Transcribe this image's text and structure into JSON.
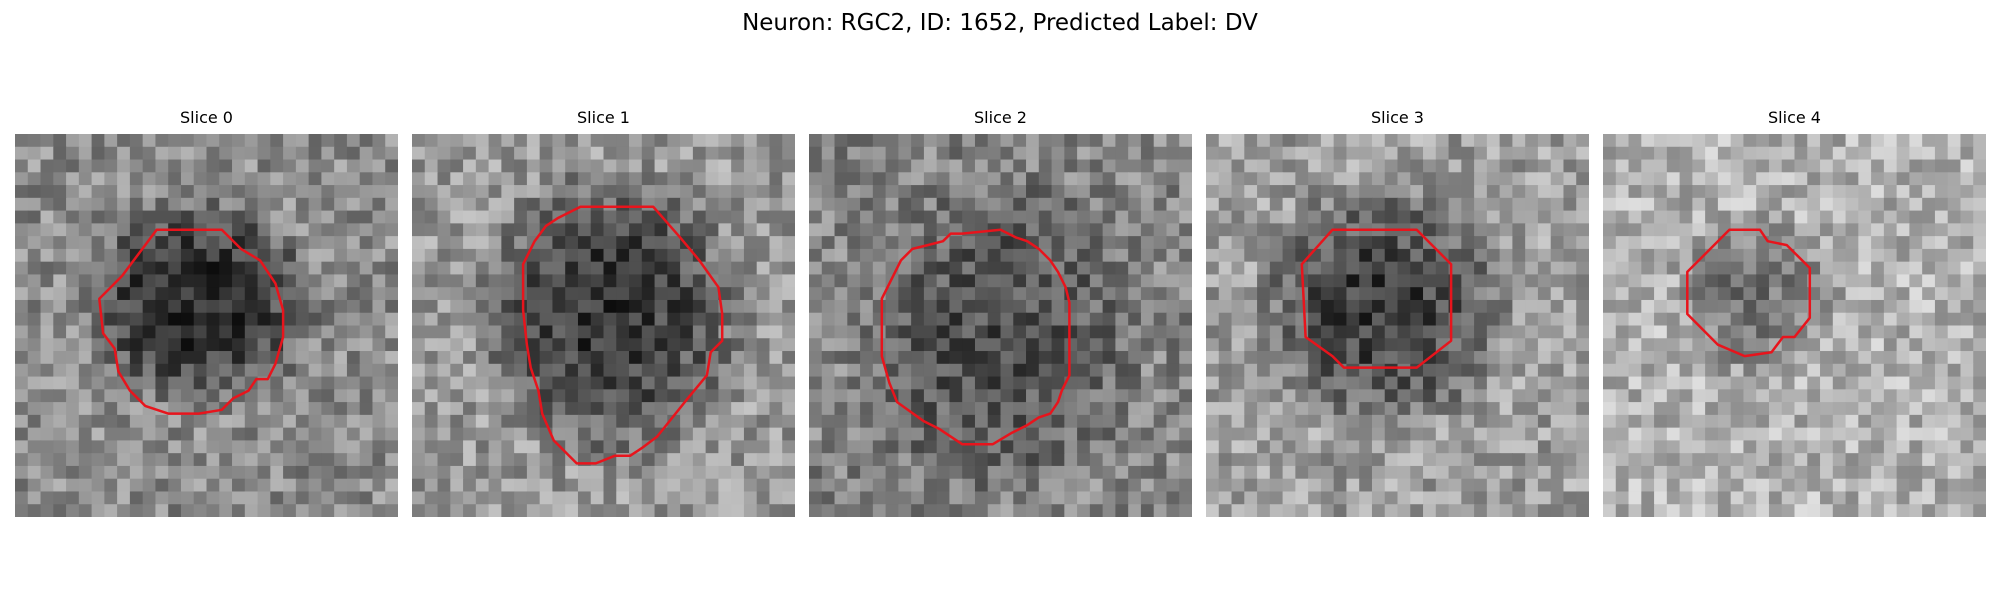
{
  "figure": {
    "title": "Neuron: RGC2, ID: 1652, Predicted Label: DV"
  },
  "contour_color": "#e8141c",
  "panels": [
    {
      "title": "Slice 0",
      "seed": 11,
      "bg": 0.55,
      "dark": 0.14,
      "center": [
        0.48,
        0.44
      ],
      "radius": [
        0.34,
        0.3
      ],
      "outline": [
        [
          0.37,
          0.25
        ],
        [
          0.54,
          0.25
        ],
        [
          0.59,
          0.3
        ],
        [
          0.64,
          0.33
        ],
        [
          0.68,
          0.39
        ],
        [
          0.7,
          0.46
        ],
        [
          0.7,
          0.53
        ],
        [
          0.68,
          0.6
        ],
        [
          0.66,
          0.64
        ],
        [
          0.63,
          0.64
        ],
        [
          0.61,
          0.67
        ],
        [
          0.57,
          0.69
        ],
        [
          0.54,
          0.72
        ],
        [
          0.48,
          0.73
        ],
        [
          0.4,
          0.73
        ],
        [
          0.34,
          0.71
        ],
        [
          0.3,
          0.67
        ],
        [
          0.27,
          0.62
        ],
        [
          0.26,
          0.56
        ],
        [
          0.23,
          0.52
        ],
        [
          0.22,
          0.43
        ],
        [
          0.25,
          0.4
        ],
        [
          0.28,
          0.37
        ],
        [
          0.31,
          0.33
        ]
      ]
    },
    {
      "title": "Slice 1",
      "seed": 23,
      "bg": 0.6,
      "dark": 0.2,
      "center": [
        0.52,
        0.47
      ],
      "radius": [
        0.38,
        0.42
      ],
      "outline": [
        [
          0.44,
          0.19
        ],
        [
          0.63,
          0.19
        ],
        [
          0.7,
          0.27
        ],
        [
          0.75,
          0.33
        ],
        [
          0.8,
          0.4
        ],
        [
          0.81,
          0.47
        ],
        [
          0.81,
          0.54
        ],
        [
          0.78,
          0.57
        ],
        [
          0.77,
          0.63
        ],
        [
          0.72,
          0.69
        ],
        [
          0.64,
          0.79
        ],
        [
          0.6,
          0.82
        ],
        [
          0.57,
          0.84
        ],
        [
          0.53,
          0.84
        ],
        [
          0.48,
          0.86
        ],
        [
          0.43,
          0.86
        ],
        [
          0.4,
          0.83
        ],
        [
          0.37,
          0.8
        ],
        [
          0.34,
          0.73
        ],
        [
          0.33,
          0.67
        ],
        [
          0.31,
          0.61
        ],
        [
          0.3,
          0.55
        ],
        [
          0.29,
          0.46
        ],
        [
          0.29,
          0.34
        ],
        [
          0.32,
          0.28
        ],
        [
          0.35,
          0.24
        ],
        [
          0.38,
          0.22
        ]
      ]
    },
    {
      "title": "Slice 2",
      "seed": 37,
      "bg": 0.52,
      "dark": 0.3,
      "center": [
        0.49,
        0.53
      ],
      "radius": [
        0.4,
        0.46
      ],
      "outline": [
        [
          0.4,
          0.26
        ],
        [
          0.5,
          0.25
        ],
        [
          0.54,
          0.27
        ],
        [
          0.57,
          0.28
        ],
        [
          0.6,
          0.3
        ],
        [
          0.63,
          0.33
        ],
        [
          0.65,
          0.36
        ],
        [
          0.67,
          0.4
        ],
        [
          0.68,
          0.44
        ],
        [
          0.68,
          0.52
        ],
        [
          0.68,
          0.58
        ],
        [
          0.68,
          0.63
        ],
        [
          0.66,
          0.67
        ],
        [
          0.65,
          0.7
        ],
        [
          0.63,
          0.73
        ],
        [
          0.6,
          0.74
        ],
        [
          0.57,
          0.76
        ],
        [
          0.53,
          0.78
        ],
        [
          0.48,
          0.81
        ],
        [
          0.4,
          0.81
        ],
        [
          0.37,
          0.79
        ],
        [
          0.34,
          0.77
        ],
        [
          0.3,
          0.75
        ],
        [
          0.23,
          0.7
        ],
        [
          0.21,
          0.65
        ],
        [
          0.19,
          0.58
        ],
        [
          0.19,
          0.43
        ],
        [
          0.22,
          0.37
        ],
        [
          0.24,
          0.33
        ],
        [
          0.27,
          0.3
        ],
        [
          0.31,
          0.29
        ],
        [
          0.35,
          0.28
        ],
        [
          0.37,
          0.26
        ]
      ]
    },
    {
      "title": "Slice 3",
      "seed": 41,
      "bg": 0.62,
      "dark": 0.22,
      "center": [
        0.46,
        0.45
      ],
      "radius": [
        0.36,
        0.36
      ],
      "outline": [
        [
          0.33,
          0.25
        ],
        [
          0.55,
          0.25
        ],
        [
          0.64,
          0.34
        ],
        [
          0.64,
          0.54
        ],
        [
          0.55,
          0.61
        ],
        [
          0.36,
          0.61
        ],
        [
          0.33,
          0.58
        ],
        [
          0.26,
          0.53
        ],
        [
          0.25,
          0.34
        ]
      ]
    },
    {
      "title": "Slice 4",
      "seed": 59,
      "bg": 0.7,
      "dark": 0.45,
      "center": [
        0.4,
        0.42
      ],
      "radius": [
        0.24,
        0.24
      ],
      "outline": [
        [
          0.33,
          0.25
        ],
        [
          0.41,
          0.25
        ],
        [
          0.43,
          0.28
        ],
        [
          0.48,
          0.29
        ],
        [
          0.54,
          0.35
        ],
        [
          0.54,
          0.48
        ],
        [
          0.5,
          0.53
        ],
        [
          0.47,
          0.53
        ],
        [
          0.44,
          0.57
        ],
        [
          0.37,
          0.58
        ],
        [
          0.3,
          0.55
        ],
        [
          0.22,
          0.47
        ],
        [
          0.22,
          0.36
        ]
      ]
    }
  ]
}
